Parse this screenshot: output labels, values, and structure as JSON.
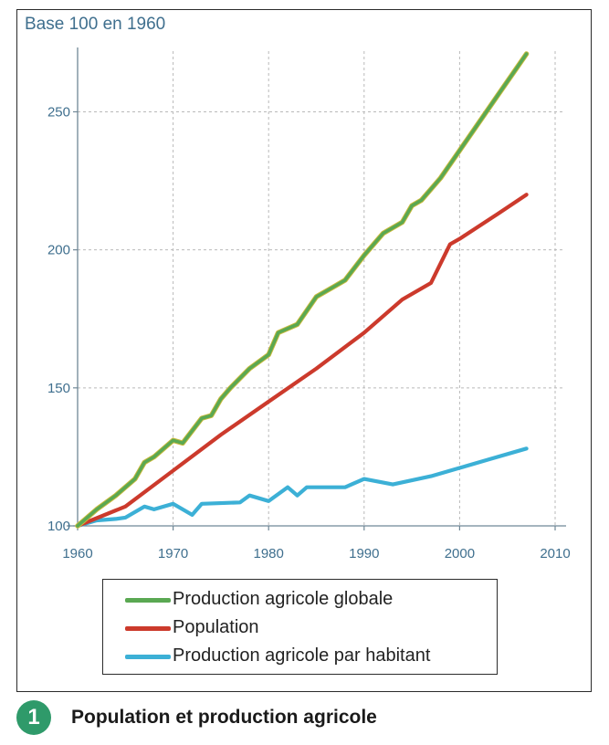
{
  "chart_data": {
    "type": "line",
    "ylabel": "Base 100 en 1960",
    "xlim": [
      1960,
      2010
    ],
    "ylim": [
      100,
      270
    ],
    "x_ticks": [
      1960,
      1970,
      1980,
      1990,
      2000,
      2010
    ],
    "y_ticks": [
      100,
      150,
      200,
      250
    ],
    "grid": true,
    "series": [
      {
        "name": "Production agricole globale",
        "color": "#5aa852",
        "points": [
          [
            1960,
            100
          ],
          [
            1962,
            106
          ],
          [
            1964,
            111
          ],
          [
            1966,
            117
          ],
          [
            1967,
            123
          ],
          [
            1968,
            125
          ],
          [
            1970,
            131
          ],
          [
            1971,
            130
          ],
          [
            1973,
            139
          ],
          [
            1974,
            140
          ],
          [
            1975,
            146
          ],
          [
            1976,
            150
          ],
          [
            1978,
            157
          ],
          [
            1980,
            162
          ],
          [
            1981,
            170
          ],
          [
            1983,
            173
          ],
          [
            1985,
            183
          ],
          [
            1987,
            187
          ],
          [
            1988,
            189
          ],
          [
            1990,
            198
          ],
          [
            1992,
            206
          ],
          [
            1994,
            210
          ],
          [
            1995,
            216
          ],
          [
            1996,
            218
          ],
          [
            1998,
            226
          ],
          [
            2000,
            236
          ],
          [
            2002,
            246
          ],
          [
            2004,
            256
          ],
          [
            2006,
            266
          ],
          [
            2007,
            271
          ]
        ]
      },
      {
        "name": "Population",
        "color": "#cc3a2c",
        "points": [
          [
            1960,
            100
          ],
          [
            1965,
            107
          ],
          [
            1970,
            120
          ],
          [
            1975,
            133
          ],
          [
            1980,
            145
          ],
          [
            1985,
            157
          ],
          [
            1990,
            170
          ],
          [
            1994,
            182
          ],
          [
            1997,
            188
          ],
          [
            1999,
            202
          ],
          [
            2000,
            204
          ],
          [
            2004,
            213
          ],
          [
            2007,
            220
          ]
        ]
      },
      {
        "name": "Production agricole par habitant",
        "color": "#3cb0d6",
        "points": [
          [
            1960,
            100
          ],
          [
            1962,
            102
          ],
          [
            1964,
            102.5
          ],
          [
            1965,
            103
          ],
          [
            1967,
            107
          ],
          [
            1968,
            106
          ],
          [
            1970,
            108
          ],
          [
            1972,
            104
          ],
          [
            1973,
            108
          ],
          [
            1977,
            108.5
          ],
          [
            1978,
            111
          ],
          [
            1980,
            109
          ],
          [
            1982,
            114
          ],
          [
            1983,
            111
          ],
          [
            1984,
            114
          ],
          [
            1988,
            114
          ],
          [
            1990,
            117
          ],
          [
            1993,
            115
          ],
          [
            1997,
            118
          ],
          [
            2000,
            121
          ],
          [
            2003,
            124
          ],
          [
            2007,
            128
          ]
        ]
      }
    ]
  },
  "legend": {
    "items": [
      {
        "label": "Production agricole globale",
        "color": "#5aa852"
      },
      {
        "label": "Population",
        "color": "#cc3a2c"
      },
      {
        "label": "Production agricole par habitant",
        "color": "#3cb0d6"
      }
    ]
  },
  "caption": {
    "number": "1",
    "text": "Population et production agricole",
    "badge_color": "#2f9a6a"
  }
}
